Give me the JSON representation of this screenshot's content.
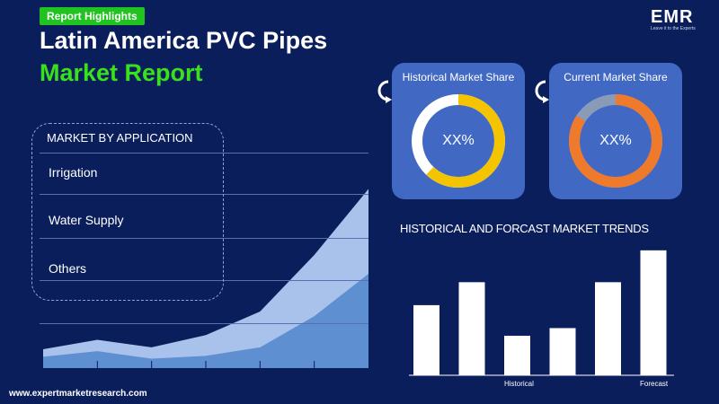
{
  "header": {
    "badge": "Report Highlights",
    "title_line1": "Latin America PVC Pipes",
    "title_line2": "Market Report"
  },
  "logo": {
    "text": "EMR",
    "tagline": "Leave it to the Experts"
  },
  "application": {
    "heading": "MARKET BY APPLICATION",
    "items": [
      "Irrigation",
      "Water Supply",
      "Others"
    ]
  },
  "cards": {
    "historical": {
      "title": "Historical Market Share",
      "value": "XX%",
      "ring_color": "#f5c400",
      "rest_color": "#ffffff",
      "fill_fraction": 0.62
    },
    "current": {
      "title": "Current Market Share",
      "value": "XX%",
      "ring_color": "#f07a2c",
      "rest_color": "#8a9bb8",
      "fill_fraction": 0.84
    }
  },
  "trends": {
    "title": "HISTORICAL AND FORCAST MARKET TRENDS",
    "label_historical": "Historical",
    "label_forecast": "Forecast"
  },
  "footer": {
    "url": "www.expertmarketresearch.com"
  },
  "colors": {
    "background": "#0b1e5c",
    "accent_green": "#21c321",
    "card_blue": "#4169c4"
  },
  "chart_data": [
    {
      "type": "area",
      "title": "",
      "series": [
        {
          "values": [
            2.0,
            3.0,
            2.2,
            3.5,
            6.0,
            12.0,
            19.0
          ]
        },
        {
          "values": [
            1.2,
            1.8,
            1.0,
            1.3,
            2.2,
            5.5,
            10.0
          ]
        }
      ],
      "ylim": [
        0,
        20
      ],
      "grid": true
    },
    {
      "type": "bar",
      "title": "HISTORICAL AND FORCAST MARKET TRENDS",
      "categories": [
        "",
        "",
        "Historical",
        "",
        "",
        "Forecast"
      ],
      "values": [
        55,
        73,
        31,
        37,
        73,
        98
      ],
      "ylim": [
        0,
        100
      ],
      "grid": false
    }
  ]
}
